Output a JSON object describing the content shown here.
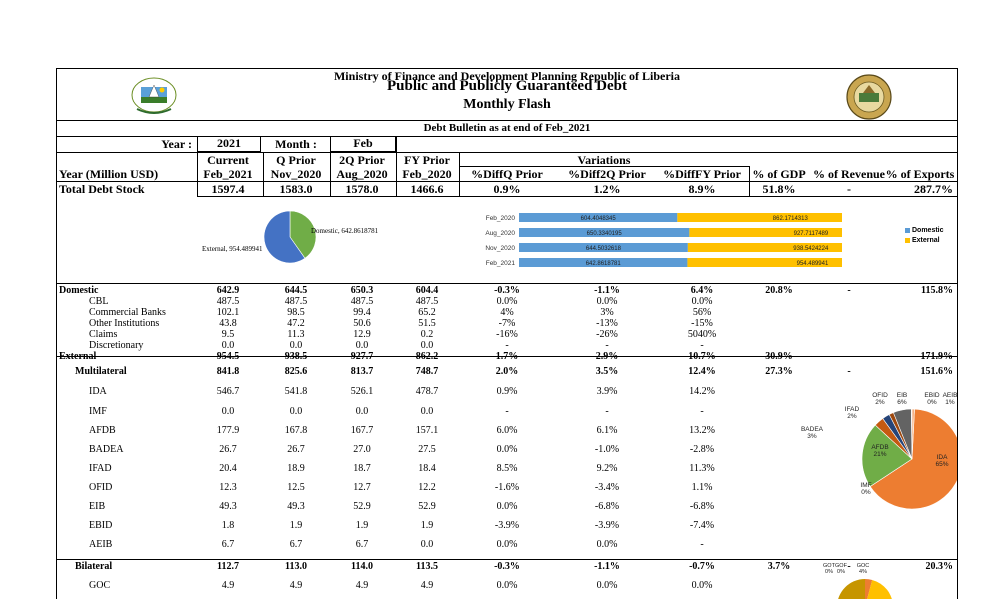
{
  "header": {
    "line1": "Ministry of Finance and Development Planning Republic of Liberia",
    "line2": "Public and Publicly Guaranteed Debt",
    "line3": "Monthly Flash",
    "bulletin": "Debt Bulletin as at end of Feb_2021"
  },
  "selectors": {
    "year_label": "Year :",
    "year_value": "2021",
    "month_label": "Month :",
    "month_value": "Feb"
  },
  "columns": {
    "current": "Current",
    "qprior": "Q Prior",
    "q2prior": "2Q Prior",
    "fyprior": "FY Prior",
    "variations": "Variations",
    "row_label": "Year (Million USD)",
    "feb2021": "Feb_2021",
    "nov2020": "Nov_2020",
    "aug2020": "Aug_2020",
    "feb2020": "Feb_2020",
    "diffq": "%DiffQ Prior",
    "diff2q": "%Diff2Q Prior",
    "difffy": "%DiffFY Prior",
    "gdp": "% of GDP",
    "revenue": "% of Revenue",
    "exports": "% of Exports"
  },
  "total": {
    "label": "Total Debt Stock",
    "v": [
      "1597.4",
      "1583.0",
      "1578.0",
      "1466.6",
      "0.9%",
      "1.2%",
      "8.9%",
      "51.8%",
      "-",
      "287.7%"
    ]
  },
  "rows": [
    {
      "label": "Domestic",
      "bold": true,
      "v": [
        "642.9",
        "644.5",
        "650.3",
        "604.4",
        "-0.3%",
        "-1.1%",
        "6.4%",
        "20.8%",
        "-",
        "115.8%"
      ]
    },
    {
      "label": "CBL",
      "v": [
        "487.5",
        "487.5",
        "487.5",
        "487.5",
        "0.0%",
        "0.0%",
        "0.0%",
        "",
        "",
        ""
      ]
    },
    {
      "label": "Commercial Banks",
      "v": [
        "102.1",
        "98.5",
        "99.4",
        "65.2",
        "4%",
        "3%",
        "56%",
        "",
        "",
        ""
      ]
    },
    {
      "label": "Other Institutions",
      "v": [
        "43.8",
        "47.2",
        "50.6",
        "51.5",
        "-7%",
        "-13%",
        "-15%",
        "",
        "",
        ""
      ]
    },
    {
      "label": "Claims",
      "v": [
        "9.5",
        "11.3",
        "12.9",
        "0.2",
        "-16%",
        "-26%",
        "5040%",
        "",
        "",
        ""
      ]
    },
    {
      "label": "Discretionary",
      "v": [
        "0.0",
        "0.0",
        "0.0",
        "0.0",
        "-",
        "-",
        "-",
        "",
        "",
        ""
      ]
    },
    {
      "label": "External",
      "bold": true,
      "v": [
        "954.5",
        "938.5",
        "927.7",
        "862.2",
        "1.7%",
        "2.9%",
        "10.7%",
        "30.9%",
        "-",
        "171.9%"
      ]
    },
    {
      "label": "Multilateral",
      "bold": true,
      "v": [
        "841.8",
        "825.6",
        "813.7",
        "748.7",
        "2.0%",
        "3.5%",
        "12.4%",
        "27.3%",
        "-",
        "151.6%"
      ]
    },
    {
      "label": "IDA",
      "v": [
        "546.7",
        "541.8",
        "526.1",
        "478.7",
        "0.9%",
        "3.9%",
        "14.2%",
        "",
        "",
        ""
      ]
    },
    {
      "label": "IMF",
      "v": [
        "0.0",
        "0.0",
        "0.0",
        "0.0",
        "-",
        "-",
        "-",
        "",
        "",
        ""
      ]
    },
    {
      "label": "AFDB",
      "v": [
        "177.9",
        "167.8",
        "167.7",
        "157.1",
        "6.0%",
        "6.1%",
        "13.2%",
        "",
        "",
        ""
      ]
    },
    {
      "label": "BADEA",
      "v": [
        "26.7",
        "26.7",
        "27.0",
        "27.5",
        "0.0%",
        "-1.0%",
        "-2.8%",
        "",
        "",
        ""
      ]
    },
    {
      "label": "IFAD",
      "v": [
        "20.4",
        "18.9",
        "18.7",
        "18.4",
        "8.5%",
        "9.2%",
        "11.3%",
        "",
        "",
        ""
      ]
    },
    {
      "label": "OFID",
      "v": [
        "12.3",
        "12.5",
        "12.7",
        "12.2",
        "-1.6%",
        "-3.4%",
        "1.1%",
        "",
        "",
        ""
      ]
    },
    {
      "label": "EIB",
      "v": [
        "49.3",
        "49.3",
        "52.9",
        "52.9",
        "0.0%",
        "-6.8%",
        "-6.8%",
        "",
        "",
        ""
      ]
    },
    {
      "label": "EBID",
      "v": [
        "1.8",
        "1.9",
        "1.9",
        "1.9",
        "-3.9%",
        "-3.9%",
        "-7.4%",
        "",
        "",
        ""
      ]
    },
    {
      "label": "AEIB",
      "v": [
        "6.7",
        "6.7",
        "6.7",
        "0.0",
        "0.0%",
        "0.0%",
        "-",
        "",
        "",
        ""
      ]
    },
    {
      "label": "Bilateral",
      "bold": true,
      "v": [
        "112.7",
        "113.0",
        "114.0",
        "113.5",
        "-0.3%",
        "-1.1%",
        "-0.7%",
        "3.7%",
        "-",
        "20.3%"
      ]
    },
    {
      "label": "GOC",
      "v": [
        "4.9",
        "4.9",
        "4.9",
        "4.9",
        "0.0%",
        "0.0%",
        "0.0%",
        "",
        "",
        ""
      ]
    }
  ],
  "chart_data": [
    {
      "type": "pie",
      "title": "",
      "labels": [
        "Domestic",
        "External"
      ],
      "values": [
        642.8618781,
        954.489941
      ],
      "data_labels": [
        "Domestic, 642.8618781",
        "External, 954.489941"
      ],
      "colors": [
        "#70ad47",
        "#4472c4"
      ]
    },
    {
      "type": "bar",
      "orientation": "horizontal",
      "stacked": true,
      "categories": [
        "Feb_2020",
        "Aug_2020",
        "Nov_2020",
        "Feb_2021"
      ],
      "series": [
        {
          "name": "Domestic",
          "values": [
            604.4048345,
            650.3340195,
            644.5032618,
            642.8618781
          ],
          "labels": [
            "604.4048345",
            "650.3340195",
            "644.5032618",
            "642.8618781"
          ],
          "color": "#5b9bd5"
        },
        {
          "name": "External",
          "values": [
            862.1714313,
            927.7117489,
            938.5424224,
            954.489941
          ],
          "labels": [
            "862.1714313",
            "927.7117489",
            "938.5424224",
            "954.489941"
          ],
          "color": "#ffc000"
        }
      ],
      "legend": "right"
    },
    {
      "type": "pie",
      "title": "",
      "labels": [
        "IDA",
        "IMF",
        "AFDB",
        "BADEA",
        "IFAD",
        "OFID",
        "EIB",
        "EBID",
        "AEIB"
      ],
      "values": [
        546.7,
        0.0,
        177.9,
        26.7,
        20.4,
        12.3,
        49.3,
        1.8,
        6.7
      ],
      "percent_labels": [
        "65%",
        "0%",
        "21%",
        "3%",
        "2%",
        "2%",
        "6%",
        "0%",
        "1%"
      ],
      "colors": [
        "#ed7d31",
        "#a5a5a5",
        "#70ad47",
        "#c55a11",
        "#264478",
        "#9e480e",
        "#636363",
        "#997300",
        "#f4b183"
      ]
    },
    {
      "type": "pie",
      "title": "",
      "labels": [
        "GOT",
        "GOF",
        "GOC"
      ],
      "percent_labels": [
        "0%",
        "0%",
        "4%"
      ]
    }
  ]
}
